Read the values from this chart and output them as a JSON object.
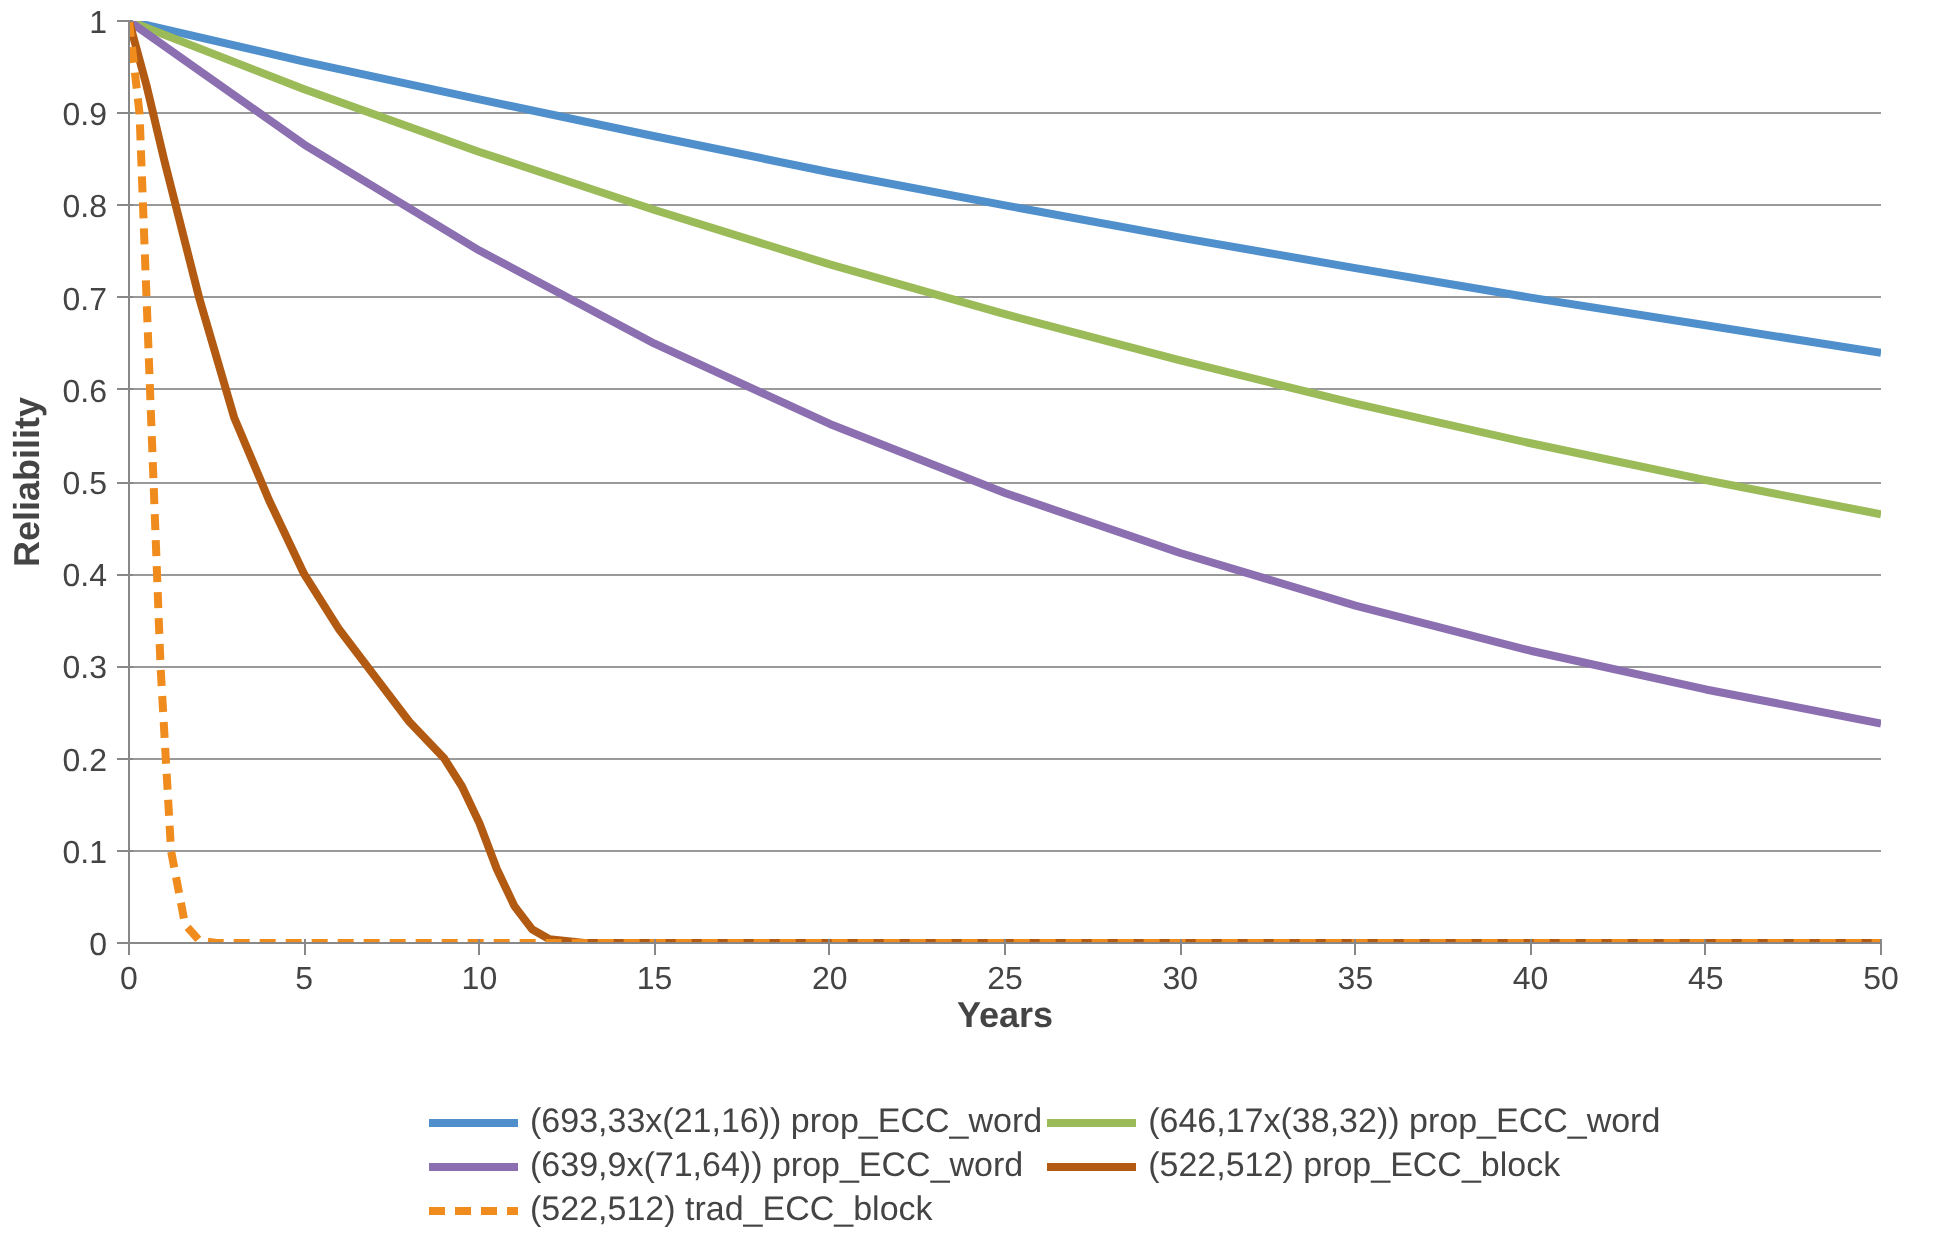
{
  "chart_data": {
    "type": "line",
    "xlabel": "Years",
    "ylabel": "Reliability",
    "xlim": [
      0,
      50
    ],
    "xticks": [
      0,
      5,
      10,
      15,
      20,
      25,
      30,
      35,
      40,
      45,
      50
    ],
    "ylim": [
      0,
      1
    ],
    "yticks": [
      0,
      0.1,
      0.2,
      0.3,
      0.4,
      0.5,
      0.6,
      0.7,
      0.8,
      0.9,
      1
    ],
    "grid": "y",
    "legend": "bottom",
    "marker": "none",
    "series": [
      {
        "name": "(693,33x(21,16)) prop_ECC_word",
        "color": "#4f8fcc",
        "line_style": "solid",
        "x": [
          0,
          5,
          10,
          15,
          20,
          25,
          30,
          35,
          40,
          45,
          50
        ],
        "values": [
          1,
          0.956,
          0.915,
          0.875,
          0.836,
          0.8,
          0.765,
          0.732,
          0.7,
          0.67,
          0.64
        ]
      },
      {
        "name": "(646,17x(38,32)) prop_ECC_word",
        "color": "#9bbb59",
        "line_style": "solid",
        "x": [
          0,
          5,
          10,
          15,
          20,
          25,
          30,
          35,
          40,
          45,
          50
        ],
        "values": [
          1,
          0.926,
          0.858,
          0.795,
          0.736,
          0.682,
          0.632,
          0.585,
          0.542,
          0.502,
          0.465
        ]
      },
      {
        "name": "(639,9x(71,64)) prop_ECC_word",
        "color": "#8c6fb0",
        "line_style": "solid",
        "x": [
          0,
          5,
          10,
          15,
          20,
          25,
          30,
          35,
          40,
          45,
          50
        ],
        "values": [
          1,
          0.866,
          0.751,
          0.65,
          0.563,
          0.488,
          0.423,
          0.366,
          0.317,
          0.275,
          0.238
        ]
      },
      {
        "name": "(522,512) prop_ECC_block",
        "color": "#b35a12",
        "line_style": "solid",
        "x": [
          0,
          0.5,
          1,
          2,
          3,
          4,
          5,
          6,
          7,
          8,
          9,
          9.5,
          10,
          10.5,
          11,
          11.5,
          12,
          13,
          50
        ],
        "values": [
          1,
          0.93,
          0.85,
          0.7,
          0.57,
          0.48,
          0.4,
          0.34,
          0.29,
          0.24,
          0.2,
          0.17,
          0.13,
          0.08,
          0.04,
          0.015,
          0.004,
          0,
          0
        ]
      },
      {
        "name": "(522,512) trad_ECC_block",
        "color": "#f08c1e",
        "line_style": "dashed",
        "x": [
          0,
          0.3,
          0.6,
          0.9,
          1.2,
          1.6,
          2,
          2.5,
          50
        ],
        "values": [
          1,
          0.9,
          0.6,
          0.3,
          0.1,
          0.02,
          0.003,
          0,
          0
        ]
      }
    ]
  }
}
